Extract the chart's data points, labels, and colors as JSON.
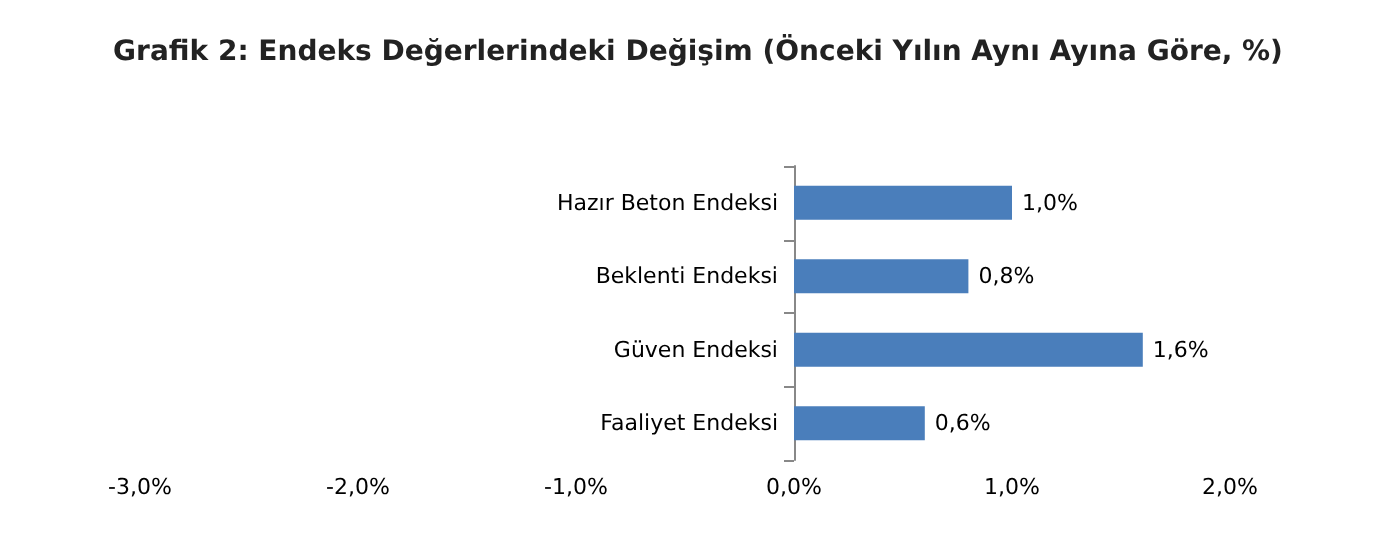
{
  "chart_data": {
    "type": "bar",
    "orientation": "horizontal",
    "title": "Grafik 2: Endeks Değerlerindeki Değişim (Önceki Yılın Aynı Ayına Göre, %)",
    "categories": [
      "Hazır Beton Endeksi",
      "Beklenti Endeksi",
      "Güven Endeksi",
      "Faaliyet Endeksi"
    ],
    "values": [
      1.0,
      0.8,
      1.6,
      0.6
    ],
    "color": "#4a7ebb",
    "value_labels": [
      "1,0%",
      "0,8%",
      "1,6%",
      "0,6%"
    ],
    "xlim": [
      -3,
      2
    ],
    "xticks": [
      {
        "value": -3,
        "label": "-3,0%"
      },
      {
        "value": -2,
        "label": "-2,0%"
      },
      {
        "value": -1,
        "label": "-1,0%"
      },
      {
        "value": 0,
        "label": "0,0%"
      },
      {
        "value": 1,
        "label": "1,0%"
      },
      {
        "value": 2,
        "label": "2,0%"
      }
    ],
    "grid": false
  }
}
